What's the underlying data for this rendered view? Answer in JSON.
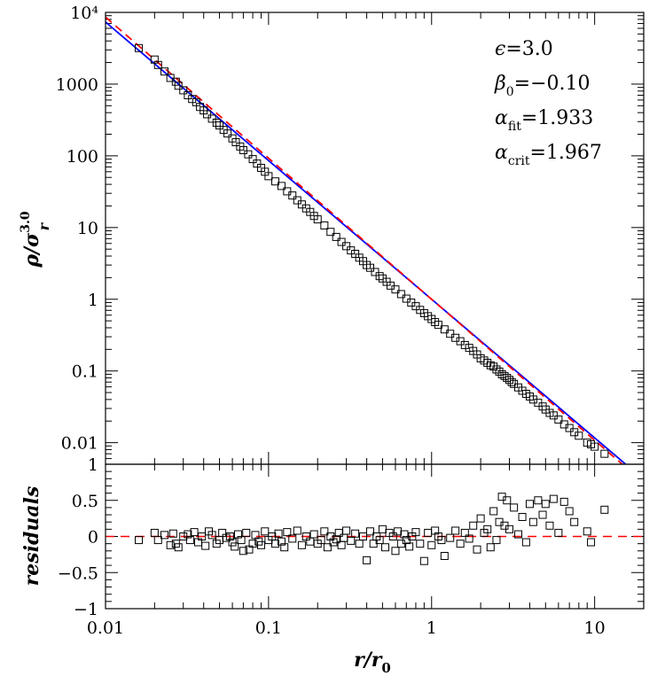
{
  "chart_data": [
    {
      "type": "scatter",
      "panel": "main",
      "xscale": "log",
      "yscale": "log",
      "xlim": [
        0.01,
        20
      ],
      "ylim": [
        0.005,
        10000
      ],
      "xticklabels": [
        "0.01",
        "0.1",
        "1",
        "10"
      ],
      "yticklabels": [
        "0.01",
        "0.1",
        "1",
        "10",
        "100",
        "1000",
        "10⁴"
      ],
      "ylabel": "ρ/σ",
      "ylabel_sub": "r",
      "ylabel_sup": "3.0",
      "annotations": [
        {
          "symbol": "ϵ",
          "sub": "",
          "text": "=3.0"
        },
        {
          "symbol": "β",
          "sub": "0",
          "text": "=−0.10"
        },
        {
          "symbol": "α",
          "sub": "fit",
          "text": "=1.933"
        },
        {
          "symbol": "α",
          "sub": "crit",
          "text": "=1.967"
        }
      ],
      "lines": [
        {
          "style": "solid",
          "color": "#0000ff",
          "slope": -1.933,
          "amplitude": 1.0
        },
        {
          "style": "dashed",
          "color": "#ff0000",
          "slope": -1.967,
          "amplitude": 1.0
        }
      ],
      "series": [
        {
          "marker": "open-square",
          "color": "#000000",
          "x": [
            0.016,
            0.02,
            0.021,
            0.023,
            0.025,
            0.027,
            0.028,
            0.03,
            0.032,
            0.034,
            0.036,
            0.038,
            0.04,
            0.042,
            0.045,
            0.048,
            0.05,
            0.053,
            0.056,
            0.06,
            0.063,
            0.067,
            0.07,
            0.075,
            0.08,
            0.085,
            0.09,
            0.095,
            0.1,
            0.11,
            0.12,
            0.13,
            0.14,
            0.15,
            0.16,
            0.17,
            0.18,
            0.19,
            0.2,
            0.22,
            0.24,
            0.26,
            0.28,
            0.3,
            0.32,
            0.34,
            0.36,
            0.38,
            0.4,
            0.42,
            0.45,
            0.48,
            0.5,
            0.53,
            0.56,
            0.6,
            0.65,
            0.7,
            0.75,
            0.8,
            0.85,
            0.9,
            0.95,
            1.0,
            1.05,
            1.1,
            1.2,
            1.3,
            1.4,
            1.5,
            1.6,
            1.7,
            1.8,
            1.9,
            2.0,
            2.1,
            2.2,
            2.3,
            2.4,
            2.5,
            2.6,
            2.7,
            2.8,
            2.9,
            3.0,
            3.1,
            3.2,
            3.4,
            3.6,
            3.8,
            4.0,
            4.2,
            4.5,
            4.8,
            5.0,
            5.3,
            5.6,
            6.0,
            6.5,
            7.0,
            7.5,
            8.0,
            9.0,
            9.5,
            10.0,
            11.5
          ],
          "y": [
            3180,
            2200,
            1850,
            1500,
            1220,
            1080,
            950,
            820,
            700,
            620,
            560,
            480,
            430,
            380,
            330,
            290,
            265,
            230,
            205,
            175,
            155,
            135,
            120,
            105,
            90,
            78,
            68,
            60,
            52,
            44,
            38,
            32,
            28,
            24,
            21,
            18.5,
            16.5,
            14.5,
            13,
            10.7,
            8.7,
            7.4,
            6.3,
            5.5,
            4.8,
            4.3,
            3.8,
            3.4,
            3.0,
            2.75,
            2.4,
            2.1,
            1.95,
            1.75,
            1.55,
            1.37,
            1.18,
            1.02,
            0.9,
            0.8,
            0.71,
            0.64,
            0.58,
            0.53,
            0.48,
            0.44,
            0.38,
            0.33,
            0.29,
            0.26,
            0.23,
            0.21,
            0.19,
            0.17,
            0.15,
            0.14,
            0.13,
            0.12,
            0.115,
            0.105,
            0.098,
            0.09,
            0.085,
            0.08,
            0.075,
            0.07,
            0.066,
            0.059,
            0.053,
            0.048,
            0.044,
            0.04,
            0.036,
            0.032,
            0.029,
            0.026,
            0.024,
            0.021,
            0.018,
            0.016,
            0.014,
            0.0125,
            0.01,
            0.0095,
            0.0088,
            0.007
          ]
        }
      ]
    },
    {
      "type": "scatter",
      "panel": "residuals",
      "xscale": "log",
      "xlim": [
        0.01,
        20
      ],
      "ylim": [
        -1,
        1
      ],
      "xlabel": "r/r",
      "xlabel_sub": "0",
      "ylabel": "residuals",
      "xticklabels": [
        "0.01",
        "0.1",
        "1",
        "10"
      ],
      "yticklabels": [
        "−1",
        "−0.5",
        "0",
        "0.5",
        "1"
      ],
      "reference_line": {
        "y": 0,
        "style": "dashed",
        "color": "#ff0000"
      },
      "series": [
        {
          "marker": "open-square",
          "color": "#000000",
          "x": [
            0.016,
            0.02,
            0.021,
            0.023,
            0.025,
            0.026,
            0.027,
            0.028,
            0.03,
            0.032,
            0.033,
            0.035,
            0.037,
            0.039,
            0.041,
            0.043,
            0.045,
            0.048,
            0.05,
            0.052,
            0.055,
            0.058,
            0.06,
            0.062,
            0.065,
            0.068,
            0.07,
            0.073,
            0.076,
            0.08,
            0.083,
            0.087,
            0.09,
            0.095,
            0.1,
            0.105,
            0.11,
            0.115,
            0.12,
            0.125,
            0.13,
            0.14,
            0.15,
            0.16,
            0.17,
            0.18,
            0.19,
            0.2,
            0.21,
            0.22,
            0.23,
            0.24,
            0.25,
            0.26,
            0.27,
            0.28,
            0.29,
            0.3,
            0.32,
            0.34,
            0.36,
            0.38,
            0.4,
            0.42,
            0.44,
            0.46,
            0.48,
            0.5,
            0.52,
            0.55,
            0.58,
            0.6,
            0.62,
            0.65,
            0.68,
            0.7,
            0.73,
            0.76,
            0.8,
            0.85,
            0.9,
            0.95,
            1.0,
            1.05,
            1.1,
            1.15,
            1.2,
            1.3,
            1.4,
            1.5,
            1.6,
            1.7,
            1.8,
            1.9,
            2.0,
            2.1,
            2.2,
            2.3,
            2.4,
            2.5,
            2.6,
            2.7,
            2.8,
            2.9,
            3.0,
            3.2,
            3.4,
            3.6,
            3.8,
            4.0,
            4.2,
            4.5,
            4.8,
            5.0,
            5.3,
            5.6,
            6.0,
            6.5,
            7.0,
            7.5,
            9.0,
            9.5,
            11.5
          ],
          "y": [
            -0.05,
            0.05,
            -0.05,
            0.02,
            -0.12,
            0.04,
            -0.1,
            -0.15,
            0.0,
            0.03,
            -0.05,
            0.06,
            -0.08,
            0.0,
            -0.13,
            0.07,
            0.02,
            -0.1,
            -0.05,
            0.05,
            -0.02,
            0.0,
            -0.08,
            -0.14,
            0.03,
            -0.05,
            -0.2,
            0.05,
            -0.18,
            -0.1,
            0.02,
            -0.07,
            -0.12,
            0.07,
            -0.05,
            0.0,
            -0.1,
            0.04,
            -0.07,
            -0.15,
            0.06,
            -0.03,
            0.08,
            -0.12,
            0.0,
            -0.07,
            0.03,
            -0.1,
            -0.05,
            0.07,
            -0.15,
            0.0,
            -0.08,
            -0.04,
            0.05,
            -0.12,
            -0.02,
            0.08,
            -0.06,
            0.04,
            -0.1,
            0.0,
            -0.33,
            0.07,
            -0.1,
            0.0,
            -0.05,
            0.1,
            -0.15,
            0.05,
            0.0,
            -0.2,
            0.07,
            -0.1,
            0.03,
            -0.05,
            -0.14,
            0.0,
            0.06,
            -0.1,
            -0.34,
            0.05,
            -0.12,
            0.08,
            0.0,
            -0.05,
            -0.27,
            -0.02,
            0.08,
            -0.1,
            0.05,
            -0.03,
            0.15,
            -0.18,
            0.25,
            0.05,
            0.1,
            -0.15,
            0.35,
            -0.05,
            0.2,
            0.55,
            0.15,
            0.5,
            0.1,
            0.4,
            0.03,
            0.27,
            -0.08,
            0.45,
            0.2,
            0.5,
            0.3,
            0.45,
            0.15,
            0.52,
            0.05,
            0.48,
            0.35,
            0.2,
            0.07,
            -0.08,
            0.37
          ]
        }
      ]
    }
  ]
}
